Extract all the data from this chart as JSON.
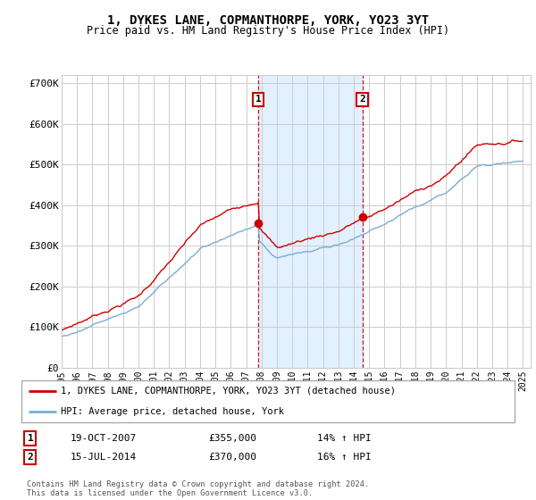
{
  "title": "1, DYKES LANE, COPMANTHORPE, YORK, YO23 3YT",
  "subtitle": "Price paid vs. HM Land Registry's House Price Index (HPI)",
  "legend_label_red": "1, DYKES LANE, COPMANTHORPE, YORK, YO23 3YT (detached house)",
  "legend_label_blue": "HPI: Average price, detached house, York",
  "sale1_label": "1",
  "sale1_date": "19-OCT-2007",
  "sale1_price": "£355,000",
  "sale1_hpi": "14% ↑ HPI",
  "sale2_label": "2",
  "sale2_date": "15-JUL-2014",
  "sale2_price": "£370,000",
  "sale2_hpi": "16% ↑ HPI",
  "footnote": "Contains HM Land Registry data © Crown copyright and database right 2024.\nThis data is licensed under the Open Government Licence v3.0.",
  "background_color": "#ffffff",
  "plot_bg_color": "#ffffff",
  "grid_color": "#cccccc",
  "red_color": "#cc0000",
  "blue_color": "#7aadd4",
  "shade_color": "#ddeeff",
  "sale1_year": 2007.8,
  "sale2_year": 2014.55,
  "ylim_bottom": 0,
  "ylim_top": 720000,
  "xlim_left": 1995.0,
  "xlim_right": 2025.5
}
